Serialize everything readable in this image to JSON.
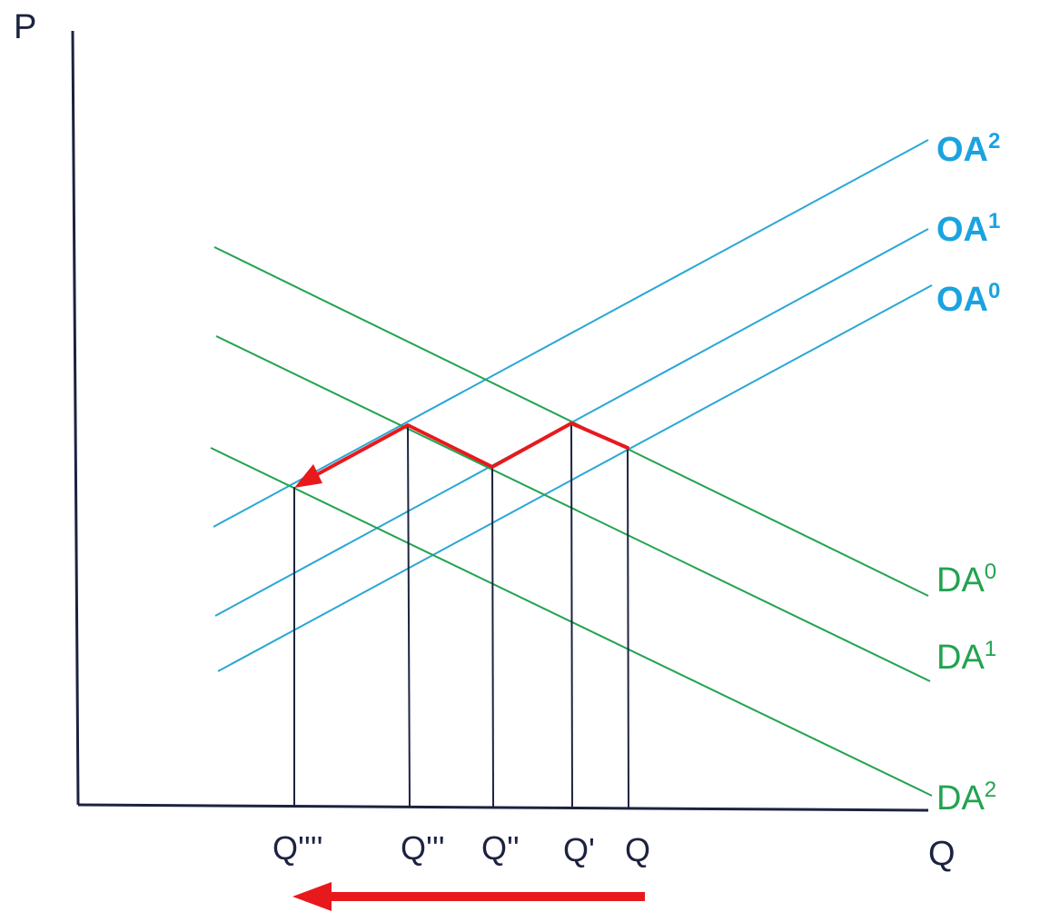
{
  "axes": {
    "y_label": "P",
    "x_label": "Q"
  },
  "quantity_ticks": [
    {
      "id": "q-quadruple-prime",
      "text": "Q''''"
    },
    {
      "id": "q-triple-prime",
      "text": "Q'''"
    },
    {
      "id": "q-double-prime",
      "text": "Q''"
    },
    {
      "id": "q-prime",
      "text": "Q'"
    },
    {
      "id": "q",
      "text": "Q"
    }
  ],
  "supply_curves": [
    {
      "id": "oa2",
      "base": "OA",
      "sup": "2"
    },
    {
      "id": "oa1",
      "base": "OA",
      "sup": "1"
    },
    {
      "id": "oa0",
      "base": "OA",
      "sup": "0"
    }
  ],
  "demand_curves": [
    {
      "id": "da0",
      "base": "DA",
      "sup": "0"
    },
    {
      "id": "da1",
      "base": "DA",
      "sup": "1"
    },
    {
      "id": "da2",
      "base": "DA",
      "sup": "2"
    }
  ],
  "colors": {
    "axis": "#1c2340",
    "supply": "#2aa7d6",
    "demand": "#22a350",
    "path": "#e8191c",
    "supply_label": "#1aa3e0",
    "demand_label": "#22a350"
  }
}
